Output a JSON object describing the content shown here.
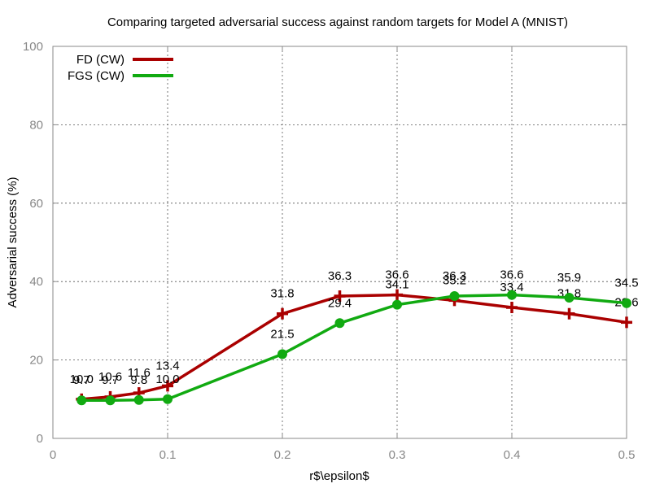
{
  "chart_data": {
    "type": "line",
    "title": "Comparing targeted adversarial success against random targets for Model A (MNIST)",
    "xlabel": "r$\\epsilon$",
    "ylabel": "Adversarial success (%)",
    "xlim": [
      0,
      0.5
    ],
    "ylim": [
      0,
      100
    ],
    "x_ticks": [
      "0",
      "0.1",
      "0.2",
      "0.3",
      "0.4",
      "0.5"
    ],
    "y_ticks": [
      "0",
      "20",
      "40",
      "60",
      "80",
      "100"
    ],
    "grid": true,
    "legend_position": "top-left",
    "series": [
      {
        "name": "FD (CW)",
        "color": "#aa0000",
        "marker": "plus",
        "x": [
          0.025,
          0.05,
          0.075,
          0.1,
          0.2,
          0.25,
          0.3,
          0.35,
          0.4,
          0.45,
          0.5
        ],
        "y": [
          10.0,
          10.6,
          11.6,
          13.4,
          31.8,
          36.3,
          36.6,
          35.2,
          33.4,
          31.8,
          29.6
        ],
        "labels": [
          "10.0",
          "10.6",
          "11.6",
          "13.4",
          "31.8",
          "36.3",
          "36.6",
          "35.2",
          "33.4",
          "31.8",
          "29.6"
        ]
      },
      {
        "name": "FGS (CW)",
        "color": "#11aa11",
        "marker": "circle",
        "x": [
          0.025,
          0.05,
          0.075,
          0.1,
          0.2,
          0.25,
          0.3,
          0.35,
          0.4,
          0.45,
          0.5
        ],
        "y": [
          9.7,
          9.7,
          9.8,
          10.0,
          21.5,
          29.4,
          34.1,
          36.3,
          36.6,
          35.9,
          34.5
        ],
        "labels": [
          "9.7",
          "9.7",
          "9.8",
          "10.0",
          "21.5",
          "29.4",
          "34.1",
          "36.3",
          "36.6",
          "35.9",
          "34.5"
        ]
      }
    ]
  }
}
